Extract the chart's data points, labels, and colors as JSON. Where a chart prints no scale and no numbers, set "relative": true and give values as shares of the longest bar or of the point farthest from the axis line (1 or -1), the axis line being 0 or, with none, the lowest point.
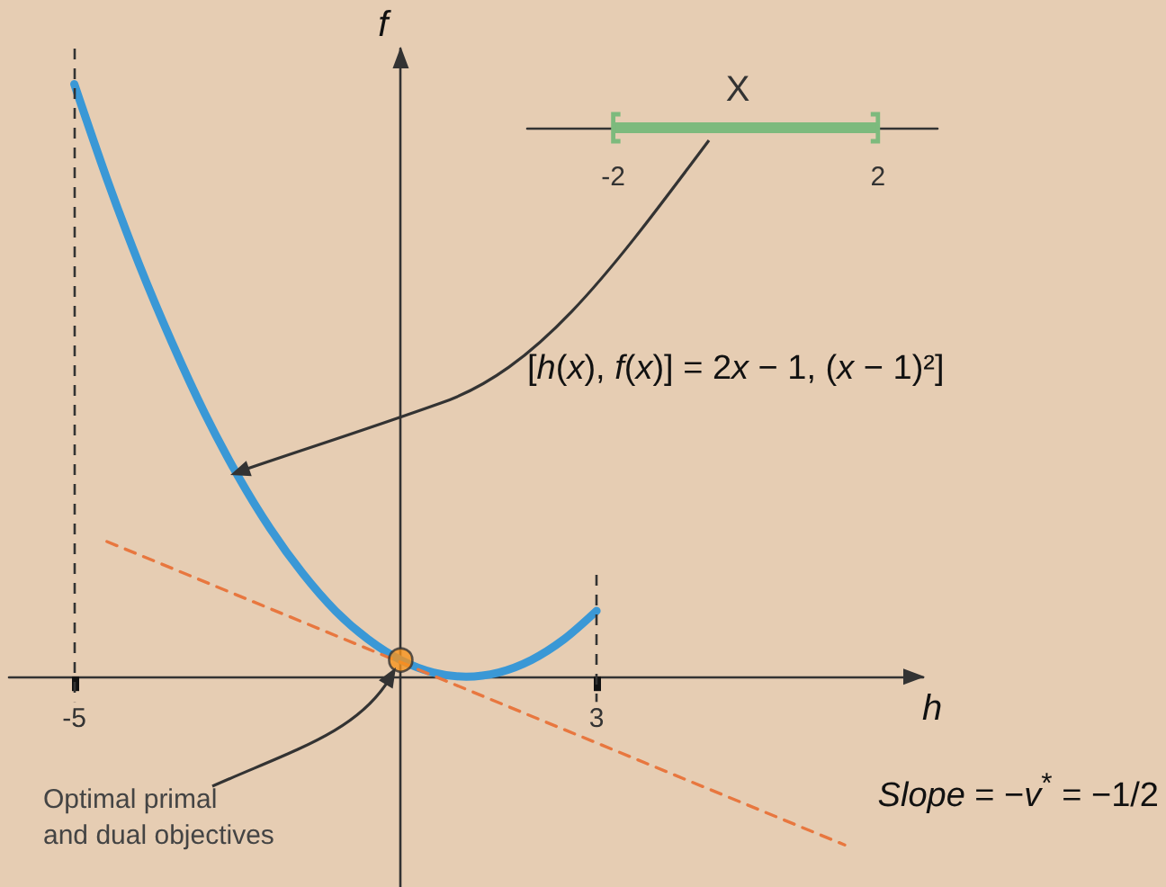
{
  "chart_data": [
    {
      "type": "line",
      "relative": true,
      "xlabel": "h",
      "ylabel": "f",
      "xlim": [
        -6,
        8
      ],
      "xticks": [
        -5,
        3
      ],
      "series": [
        {
          "type": "line",
          "color": "#3a98d6",
          "x": [
            -5,
            -4.5,
            -4,
            -3.5,
            -3,
            -2.5,
            -2,
            -1.5,
            -1,
            -0.5,
            0,
            0.5,
            1,
            1.5,
            2,
            2.5,
            3
          ],
          "values": [
            1,
            0.84,
            0.694,
            0.563,
            0.444,
            0.34,
            0.25,
            0.174,
            0.111,
            0.063,
            0.028,
            0.007,
            0,
            0.007,
            0.028,
            0.063,
            0.111
          ]
        },
        {
          "type": "line",
          "color": "#e8773f",
          "line_style": "dashed",
          "x": [
            -4.5,
            6.8
          ],
          "values": [
            0.228,
            -0.284
          ]
        },
        {
          "type": "scatter",
          "color": "#f7941d",
          "marker": "circle",
          "x": [
            0
          ],
          "values": [
            0.028
          ]
        }
      ],
      "ref_lines": [
        {
          "axis": "x",
          "value": -5,
          "color": "#333333",
          "line_style": "dashed"
        },
        {
          "axis": "x",
          "value": 3,
          "color": "#333333",
          "line_style": "dashed"
        }
      ],
      "annotations": [
        "[h(x), f(x)] = 2x − 1, (x − 1)²]",
        "Optimal primal\nand dual objectives",
        "Slope = −v$^{*}$ = −1/2"
      ]
    },
    {
      "type": "bar",
      "orientation": "horizontal",
      "title": "X",
      "categories": [
        null
      ],
      "values": [
        4
      ],
      "base": [
        -2
      ],
      "color": "#7dba7d",
      "xlim": [
        -3.3,
        2.9
      ],
      "xticks": [
        -2,
        2
      ]
    }
  ]
}
